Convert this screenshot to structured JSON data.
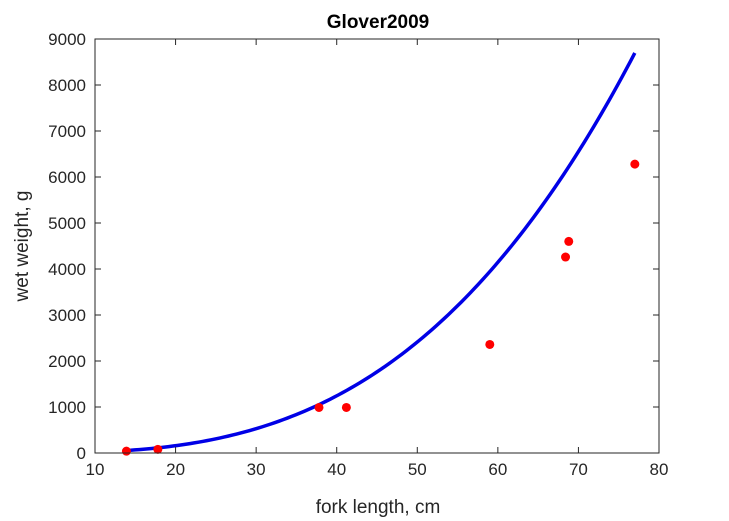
{
  "chart_data": {
    "type": "scatter",
    "title": "Glover2009",
    "xlabel": "fork length, cm",
    "ylabel": "wet weight, g",
    "xlim": [
      10,
      80
    ],
    "ylim": [
      0,
      9000
    ],
    "xticks": [
      "10",
      "20",
      "30",
      "40",
      "50",
      "60",
      "70",
      "80"
    ],
    "yticks": [
      "0",
      "1000",
      "2000",
      "3000",
      "4000",
      "5000",
      "6000",
      "7000",
      "8000",
      "9000"
    ],
    "grid": false,
    "points": {
      "color": "#ff0000",
      "x": [
        13.9,
        17.8,
        37.8,
        41.2,
        59.0,
        68.4,
        68.8,
        77.0
      ],
      "y": [
        40,
        80,
        990,
        990,
        2360,
        4260,
        4600,
        6280
      ]
    },
    "fit_curve": {
      "color": "#0000e6",
      "a": 0.0217,
      "b": 2.97,
      "x_range": [
        13.9,
        77.0
      ]
    }
  }
}
